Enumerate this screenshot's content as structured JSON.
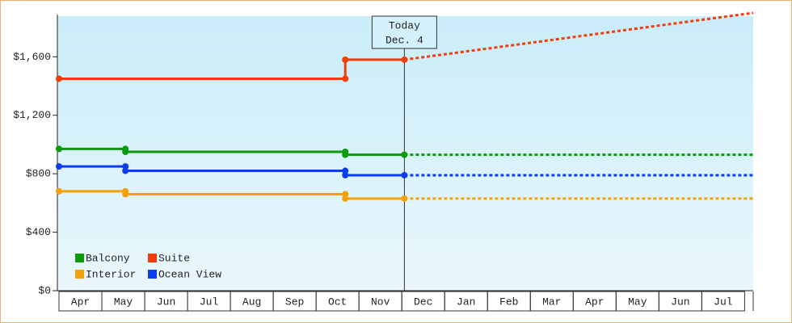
{
  "chart_data": {
    "type": "line",
    "categories": [
      "Apr",
      "May",
      "Jun",
      "Jul",
      "Aug",
      "Sep",
      "Oct",
      "Nov",
      "Dec",
      "Jan",
      "Feb",
      "Mar",
      "Apr",
      "May",
      "Jun",
      "Jul"
    ],
    "xlim": [
      0,
      16.2
    ],
    "ylim": [
      0,
      1900
    ],
    "yticks": [
      {
        "value": 0,
        "label": "$0"
      },
      {
        "value": 400,
        "label": "$400"
      },
      {
        "value": 800,
        "label": "$800"
      },
      {
        "value": 1200,
        "label": "$1,200"
      },
      {
        "value": 1600,
        "label": "$1,600"
      }
    ],
    "today": {
      "x": 8.06,
      "label": [
        "Today",
        "Dec. 4"
      ]
    },
    "series": [
      {
        "name": "Balcony",
        "color": "#0a9a0a",
        "x": [
          0,
          1.55,
          1.55,
          6.68,
          6.68,
          8.06
        ],
        "values": [
          970,
          970,
          950,
          950,
          930,
          930
        ],
        "forecast_x": [
          8.06,
          16.2
        ],
        "forecast_values": [
          930,
          930
        ]
      },
      {
        "name": "Suite",
        "color": "#f23c0c",
        "x": [
          0,
          6.68,
          6.68,
          8.06
        ],
        "values": [
          1450,
          1450,
          1580,
          1580
        ],
        "forecast_x": [
          8.06,
          16.2
        ],
        "forecast_values": [
          1580,
          1900
        ]
      },
      {
        "name": "Interior",
        "color": "#f5a20a",
        "x": [
          0,
          1.55,
          1.55,
          6.68,
          6.68,
          8.06
        ],
        "values": [
          680,
          680,
          660,
          660,
          630,
          630
        ],
        "forecast_x": [
          8.06,
          16.2
        ],
        "forecast_values": [
          630,
          630
        ]
      },
      {
        "name": "Ocean View",
        "color": "#0a3cf0",
        "x": [
          0,
          1.55,
          1.55,
          6.68,
          6.68,
          8.06
        ],
        "values": [
          850,
          850,
          820,
          820,
          790,
          790
        ],
        "forecast_x": [
          8.06,
          16.2
        ],
        "forecast_values": [
          790,
          790
        ]
      }
    ]
  }
}
